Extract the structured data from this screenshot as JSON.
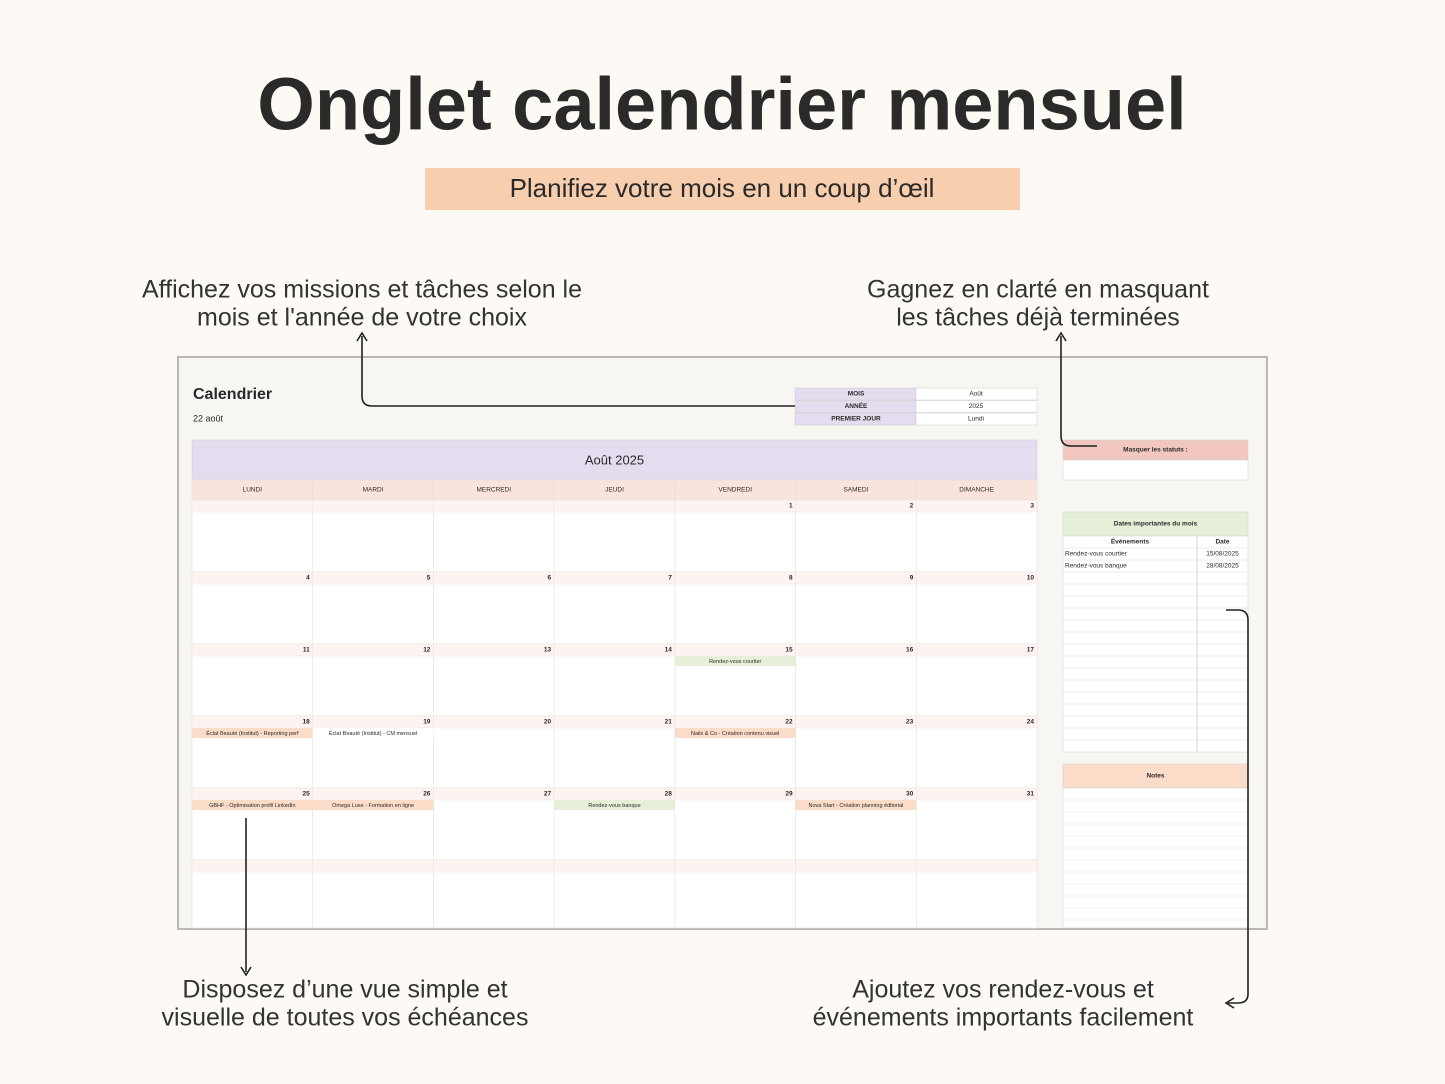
{
  "header": {
    "title": "Onglet calendrier mensuel",
    "subtitle": "Planifiez votre mois en un coup d’œil"
  },
  "callouts": {
    "top_left": [
      "Affichez vos missions et tâches selon le",
      "mois et l'année de votre choix"
    ],
    "top_right": [
      "Gagnez en clarté en masquant",
      "les tâches déjà terminées"
    ],
    "bottom_left": [
      "Disposez d’une vue simple et",
      "visuelle de toutes vos échéances"
    ],
    "bottom_right": [
      "Ajoutez vos rendez-vous et",
      "événements importants facilement"
    ]
  },
  "sheet": {
    "title": "Calendrier",
    "today": "22 août",
    "controls": [
      {
        "label": "MOIS",
        "value": "Août"
      },
      {
        "label": "ANNÉE",
        "value": "2025"
      },
      {
        "label": "PREMIER JOUR",
        "value": "Lundi"
      }
    ]
  },
  "calendar": {
    "month_title": "Août 2025",
    "weekdays": [
      "LUNDI",
      "MARDI",
      "MERCREDI",
      "JEUDI",
      "VENDREDI",
      "SAMEDI",
      "DIMANCHE"
    ],
    "weeks": [
      [
        null,
        null,
        null,
        null,
        1,
        2,
        3
      ],
      [
        4,
        5,
        6,
        7,
        8,
        9,
        10
      ],
      [
        11,
        12,
        13,
        14,
        15,
        16,
        17
      ],
      [
        18,
        19,
        20,
        21,
        22,
        23,
        24
      ],
      [
        25,
        26,
        27,
        28,
        29,
        30,
        31
      ],
      [
        null,
        null,
        null,
        null,
        null,
        null,
        null
      ]
    ],
    "events": [
      {
        "day": 15,
        "text": "Rendez-vous courtier",
        "color": "#e6f0d8"
      },
      {
        "day": 18,
        "text": "Éclat Beauté (Institut) - Reporting perf",
        "color": "#fbdcc8"
      },
      {
        "day": 19,
        "text": "Éclat Beauté (Institut) - CM mensuel",
        "color": "#ffffff"
      },
      {
        "day": 22,
        "text": "Nails & Co - Création contenu visuel",
        "color": "#fbdcc8"
      },
      {
        "day": 25,
        "text": "GBHF - Optimisation profil LinkedIn",
        "color": "#fbdcc8"
      },
      {
        "day": 26,
        "text": "Omega Luxe - Formation en ligne",
        "color": "#fbdcc8"
      },
      {
        "day": 28,
        "text": "Rendez-vous banque",
        "color": "#e6f0d8"
      },
      {
        "day": 30,
        "text": "Nova Start - Création planning éditorial",
        "color": "#fbdcc8"
      }
    ]
  },
  "side": {
    "hide_status_label": "Masquer les statuts :",
    "important": {
      "title": "Dates importantes du mois",
      "headers": [
        "Événements",
        "Date"
      ],
      "rows": [
        [
          "Rendez-vous courtier",
          "15/08/2025"
        ],
        [
          "Rendez-vous banque",
          "28/08/2025"
        ]
      ]
    },
    "notes_title": "Notes"
  }
}
